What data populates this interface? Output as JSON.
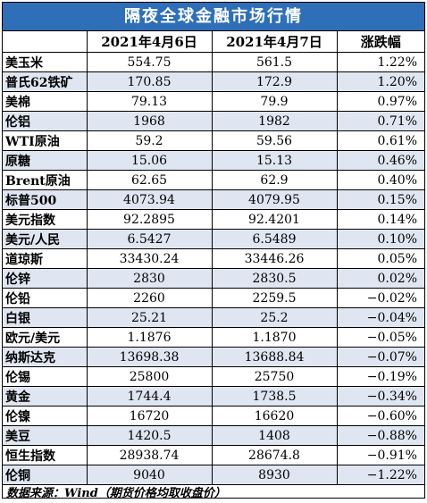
{
  "title": "隔夜全球金融市场行情",
  "headers": [
    "",
    "2021年4月6日",
    "2021年4月7日",
    "涨跌幅"
  ],
  "rows": [
    [
      "美玉米",
      "554.75",
      "561.5",
      "1.22%"
    ],
    [
      "普氏62铁矿",
      "170.85",
      "172.9",
      "1.20%"
    ],
    [
      "美棉",
      "79.13",
      "79.9",
      "0.97%"
    ],
    [
      "伦铝",
      "1968",
      "1982",
      "0.71%"
    ],
    [
      "WTI原油",
      "59.2",
      "59.56",
      "0.61%"
    ],
    [
      "原糖",
      "15.06",
      "15.13",
      "0.46%"
    ],
    [
      "Brent原油",
      "62.65",
      "62.9",
      "0.40%"
    ],
    [
      "标普500",
      "4073.94",
      "4079.95",
      "0.15%"
    ],
    [
      "美元指数",
      "92.2895",
      "92.4201",
      "0.14%"
    ],
    [
      "美元/人民",
      "6.5427",
      "6.5489",
      "0.10%"
    ],
    [
      "道琼斯",
      "33430.24",
      "33446.26",
      "0.05%"
    ],
    [
      "伦锌",
      "2830",
      "2830.5",
      "0.02%"
    ],
    [
      "伦铅",
      "2260",
      "2259.5",
      "−0.02%"
    ],
    [
      "白银",
      "25.21",
      "25.2",
      "−0.04%"
    ],
    [
      "欧元/美元",
      "1.1876",
      "1.1870",
      "−0.05%"
    ],
    [
      "纳斯达克",
      "13698.38",
      "13688.84",
      "−0.07%"
    ],
    [
      "伦锡",
      "25800",
      "25750",
      "−0.19%"
    ],
    [
      "黄金",
      "1744.4",
      "1738.5",
      "−0.34%"
    ],
    [
      "伦镍",
      "16720",
      "16620",
      "−0.60%"
    ],
    [
      "美豆",
      "1420.5",
      "1408",
      "−0.88%"
    ],
    [
      "恒生指数",
      "28938.74",
      "28674.8",
      "−0.91%"
    ],
    [
      "伦铜",
      "9040",
      "8930",
      "−1.22%"
    ]
  ],
  "footer": "数据来源：Wind（期货价格均取收盘价）",
  "colors": {
    "title_bg": "#2f6fb7",
    "stripe": "#dfe6f1"
  }
}
